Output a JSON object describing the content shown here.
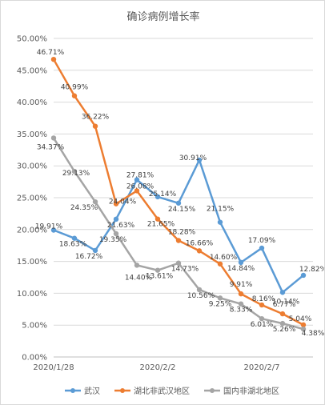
{
  "chart_data": {
    "type": "line",
    "title": "确诊病例增长率",
    "xlabel": "",
    "ylabel": "",
    "ylim": [
      0,
      50
    ],
    "yticks": [
      "0.00%",
      "5.00%",
      "10.00%",
      "15.00%",
      "20.00%",
      "25.00%",
      "30.00%",
      "35.00%",
      "40.00%",
      "45.00%",
      "50.00%"
    ],
    "x_count": 13,
    "x_tick_labels": [
      {
        "index": 0,
        "label": "2020/1/28"
      },
      {
        "index": 5,
        "label": "2020/2/2"
      },
      {
        "index": 10,
        "label": "2020/2/7"
      }
    ],
    "legend_position": "bottom",
    "grid": true,
    "series": [
      {
        "name": "武汉",
        "color": "#5b9bd5",
        "values": [
          19.91,
          18.63,
          16.72,
          21.63,
          27.81,
          25.14,
          24.15,
          30.91,
          21.15,
          14.84,
          17.09,
          10.14,
          12.82
        ],
        "labels": [
          "19.91%",
          "18.63%",
          "16.72%",
          "21.63%",
          "27.81%",
          "25.14%",
          "24.15%",
          "30.91%",
          "21.15%",
          "14.84%",
          "17.09%",
          "10.14%",
          "12.82%"
        ]
      },
      {
        "name": "湖北非武汉地区",
        "color": "#ed7d31",
        "values": [
          46.71,
          40.99,
          36.22,
          24.04,
          26.08,
          21.65,
          18.28,
          16.66,
          14.6,
          9.91,
          8.16,
          6.77,
          5.04
        ],
        "labels": [
          "46.71%",
          "40.99%",
          "36.22%",
          "24.04%",
          "26.08%",
          "21.65%",
          "18.28%",
          "16.66%",
          "14.60%",
          "9.91%",
          "8.16%",
          "6.77%",
          "5.04%"
        ]
      },
      {
        "name": "国内非湖北地区",
        "color": "#a5a5a5",
        "values": [
          34.37,
          29.13,
          24.35,
          19.35,
          14.4,
          13.61,
          14.73,
          10.56,
          9.25,
          8.33,
          6.01,
          5.26,
          4.38
        ],
        "labels": [
          "34.37%",
          "29.13%",
          "24.35%",
          "19.35%",
          "14.40%",
          "13.61%",
          "14.73%",
          "10.56%",
          "9.25%",
          "8.33%",
          "6.01%",
          "5.26%",
          "4.38%"
        ]
      }
    ]
  }
}
